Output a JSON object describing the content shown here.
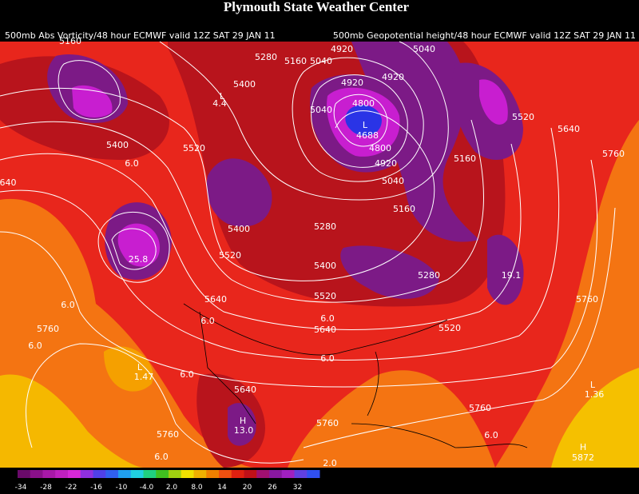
{
  "header": {
    "title": "Plymouth State Weather Center",
    "left_caption": "500mb Abs Vorticity/48 hour ECMWF valid 12Z SAT 29 JAN 11",
    "right_caption": "500mb Geopotential height/48 hour ECMWF valid 12Z SAT 29 JAN 11"
  },
  "map_labels": [
    "5160",
    "5280",
    "5160",
    "5040",
    "4920",
    "5040",
    "4920",
    "4920",
    "5400",
    "L",
    "4.4",
    "4800",
    "L",
    "4688",
    "4800",
    "5040",
    "5520",
    "5640",
    "5760",
    "5400",
    "5520",
    "6.0",
    "4920",
    "5160",
    "5040",
    "640",
    "5160",
    "5400",
    "5280",
    "25.8",
    "5520",
    "5400",
    "5280",
    "19.1",
    "5520",
    "5640",
    "5760",
    "6.0",
    "6.0",
    "6.0",
    "5640",
    "5520",
    "5760",
    "6.0",
    "L",
    "1.47",
    "6.0",
    "6.0",
    "5640",
    "L",
    "1.36",
    "H",
    "13.0",
    "5760",
    "5760",
    "5760",
    "6.0",
    "H",
    "5872",
    "6.0",
    "2.0"
  ],
  "colorbar": {
    "labels": [
      "-34",
      "-28",
      "-22",
      "-16",
      "-10",
      "-4.0",
      "2.0",
      "8.0",
      "14",
      "20",
      "26",
      "32"
    ]
  }
}
